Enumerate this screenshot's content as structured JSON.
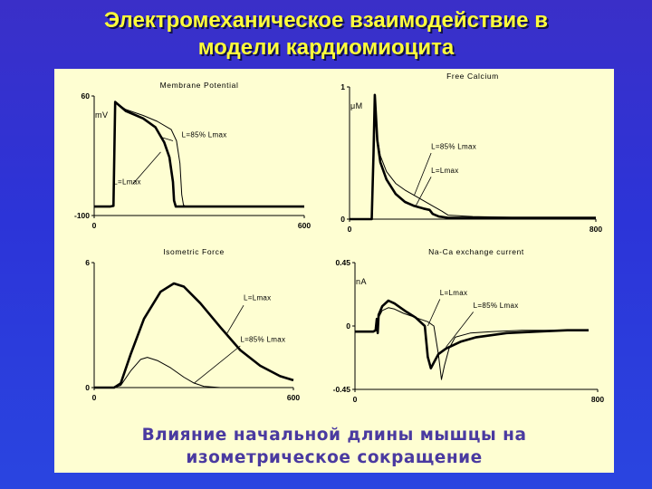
{
  "slide": {
    "title_line1": "Электромеханическое взаимодействие в",
    "title_line2": "модели кардиомиоцита",
    "caption_line1": "Влияние начальной длины мышцы на",
    "caption_line2": "изометрическое сокращение"
  },
  "colors": {
    "curve": "#000000",
    "panel_bg": "#fefed2",
    "title": "#ffff3a",
    "caption": "#4a3aa0"
  },
  "chart_data": [
    {
      "id": "membrane",
      "type": "line",
      "title": "Membrane Potential",
      "unit": "mV",
      "xlim": [
        0,
        600
      ],
      "ylim": [
        -100,
        60
      ],
      "xticks": [
        0,
        600
      ],
      "yticks": [
        -100,
        60
      ],
      "annotations": [
        {
          "text": "L=85% Lmax",
          "x": 250,
          "y": 5
        },
        {
          "text": "L=Lmax",
          "x": 55,
          "y": -58
        }
      ],
      "series": [
        {
          "name": "L=Lmax",
          "bold": true,
          "x": [
            0,
            8,
            45,
            55,
            60,
            90,
            140,
            175,
            200,
            215,
            225,
            228,
            233,
            240,
            260,
            300,
            600
          ],
          "y": [
            -88,
            -88,
            -88,
            -87,
            52,
            40,
            30,
            18,
            -2,
            -22,
            -55,
            -80,
            -88,
            -88,
            -88,
            -88,
            -88
          ]
        },
        {
          "name": "L=85% Lmax",
          "bold": false,
          "x": [
            0,
            8,
            45,
            55,
            60,
            90,
            140,
            180,
            220,
            235,
            245,
            250,
            255,
            262,
            300,
            600
          ],
          "y": [
            -88,
            -88,
            -88,
            -87,
            52,
            42,
            34,
            26,
            15,
            0,
            -30,
            -72,
            -86,
            -88,
            -88,
            -88
          ]
        }
      ]
    },
    {
      "id": "calcium",
      "type": "line",
      "title": "Free Calcium",
      "unit": "μM",
      "xlim": [
        0,
        800
      ],
      "ylim": [
        0,
        1
      ],
      "xticks": [
        0,
        800
      ],
      "yticks": [
        0,
        1
      ],
      "annotations": [
        {
          "text": "L=85% Lmax",
          "x": 265,
          "y": 0.53
        },
        {
          "text": "L=Lmax",
          "x": 265,
          "y": 0.35
        }
      ],
      "series": [
        {
          "name": "L=Lmax",
          "bold": true,
          "x": [
            0,
            60,
            72,
            78,
            82,
            90,
            100,
            120,
            150,
            180,
            210,
            240,
            260,
            270,
            290,
            320,
            400,
            600,
            800
          ],
          "y": [
            0.0,
            0.0,
            0.0,
            0.5,
            0.94,
            0.6,
            0.43,
            0.3,
            0.19,
            0.13,
            0.1,
            0.08,
            0.07,
            0.04,
            0.02,
            0.01,
            0.01,
            0.01,
            0.01
          ]
        },
        {
          "name": "L=85% Lmax",
          "bold": false,
          "x": [
            0,
            60,
            72,
            78,
            82,
            90,
            100,
            120,
            150,
            180,
            210,
            240,
            270,
            300,
            320,
            400,
            600,
            800
          ],
          "y": [
            0.0,
            0.0,
            0.0,
            0.5,
            0.94,
            0.62,
            0.48,
            0.36,
            0.27,
            0.22,
            0.18,
            0.14,
            0.1,
            0.06,
            0.03,
            0.02,
            0.01,
            0.01
          ]
        }
      ]
    },
    {
      "id": "force",
      "type": "line",
      "title": "Isometric Force",
      "unit": "",
      "xlim": [
        0,
        600
      ],
      "ylim": [
        0,
        6
      ],
      "xticks": [
        0,
        600
      ],
      "yticks": [
        0,
        6
      ],
      "annotations": [
        {
          "text": "L=Lmax",
          "x": 450,
          "y": 4.2
        },
        {
          "text": "L=85% Lmax",
          "x": 440,
          "y": 2.2
        }
      ],
      "series": [
        {
          "name": "L=Lmax",
          "bold": true,
          "x": [
            0,
            60,
            80,
            110,
            150,
            200,
            240,
            270,
            320,
            380,
            440,
            500,
            560,
            600
          ],
          "y": [
            0,
            0,
            0.2,
            1.6,
            3.3,
            4.6,
            5.0,
            4.85,
            4.05,
            2.9,
            1.8,
            1.05,
            0.55,
            0.35
          ]
        },
        {
          "name": "L=85% Lmax",
          "bold": false,
          "x": [
            0,
            60,
            80,
            110,
            140,
            160,
            190,
            230,
            270,
            300,
            330,
            380,
            600
          ],
          "y": [
            0,
            0,
            0.1,
            0.8,
            1.35,
            1.45,
            1.3,
            0.95,
            0.5,
            0.22,
            0.06,
            0.0,
            0.0
          ]
        }
      ]
    },
    {
      "id": "naca",
      "type": "line",
      "title": "Na-Ca exchange current",
      "unit": "nA",
      "xlim": [
        0,
        800
      ],
      "ylim": [
        -0.45,
        0.45
      ],
      "xticks": [
        0,
        800
      ],
      "yticks": [
        -0.45,
        0,
        0.45
      ],
      "annotations": [
        {
          "text": "L=Lmax",
          "x": 280,
          "y": 0.22
        },
        {
          "text": "L=85% Lmax",
          "x": 390,
          "y": 0.13
        }
      ],
      "series": [
        {
          "name": "L=Lmax",
          "bold": true,
          "x": [
            0,
            60,
            68,
            72,
            75,
            78,
            90,
            110,
            130,
            150,
            170,
            200,
            230,
            240,
            250,
            260,
            275,
            300,
            350,
            400,
            500,
            600,
            700,
            770
          ],
          "y": [
            -0.04,
            -0.04,
            -0.03,
            0.05,
            -0.05,
            0.08,
            0.14,
            0.18,
            0.16,
            0.13,
            0.1,
            0.06,
            0.0,
            -0.22,
            -0.3,
            -0.26,
            -0.2,
            -0.16,
            -0.11,
            -0.08,
            -0.05,
            -0.04,
            -0.03,
            -0.03
          ]
        },
        {
          "name": "L=85% Lmax",
          "bold": false,
          "x": [
            0,
            60,
            68,
            72,
            75,
            78,
            90,
            110,
            130,
            160,
            200,
            240,
            260,
            275,
            285,
            295,
            310,
            330,
            380,
            450,
            550,
            650,
            770
          ],
          "y": [
            -0.04,
            -0.04,
            -0.03,
            0.05,
            -0.05,
            0.06,
            0.11,
            0.13,
            0.12,
            0.09,
            0.06,
            0.03,
            0.0,
            -0.2,
            -0.38,
            -0.28,
            -0.16,
            -0.08,
            -0.05,
            -0.04,
            -0.03,
            -0.03,
            -0.03
          ]
        }
      ]
    }
  ]
}
